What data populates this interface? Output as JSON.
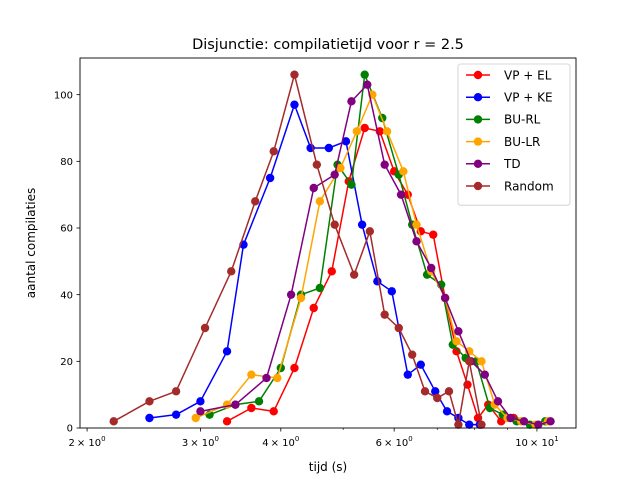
{
  "chart_data": {
    "type": "line",
    "title": "Disjunctie: compilatietijd voor r = 2.5",
    "xlabel": "tijd (s)",
    "ylabel": "aantal compilaties",
    "xscale": "log",
    "xlim": [
      1.95,
      11.5
    ],
    "ylim": [
      0,
      111
    ],
    "x_major_ticks": [
      {
        "value": 2,
        "base": "2",
        "exp": "0"
      },
      {
        "value": 3,
        "base": "3",
        "exp": "0"
      },
      {
        "value": 4,
        "base": "4",
        "exp": "0"
      },
      {
        "value": 6,
        "base": "6",
        "exp": "0"
      },
      {
        "value": 10,
        "base": "10",
        "exp": "1"
      }
    ],
    "x_minor_ticks": [
      5,
      7,
      8,
      9
    ],
    "x_tick_suffix": "× 10",
    "y_ticks": [
      0,
      20,
      40,
      60,
      80,
      100
    ],
    "y_tick_labels": [
      "0",
      "20",
      "40",
      "60",
      "80",
      "100"
    ],
    "grid": false,
    "legend": "top-right",
    "series": [
      {
        "name": "VP + EL",
        "color": "#ff0000",
        "x": [
          3.3,
          3.6,
          3.9,
          4.2,
          4.5,
          4.8,
          5.1,
          5.4,
          5.7,
          6.0,
          6.3,
          6.6,
          6.9,
          7.2,
          7.5,
          7.8,
          8.1,
          8.4,
          8.8,
          9.2
        ],
        "y": [
          2,
          6,
          5,
          18,
          36,
          47,
          74,
          90,
          89,
          77,
          70,
          59,
          58,
          39,
          23,
          13,
          3,
          7,
          2,
          3
        ]
      },
      {
        "name": "VP + KE",
        "color": "#0000ff",
        "x": [
          2.5,
          2.75,
          3.0,
          3.3,
          3.5,
          3.85,
          4.2,
          4.45,
          4.75,
          5.05,
          5.35,
          5.65,
          5.95,
          6.3,
          6.6,
          6.95,
          7.25,
          7.55,
          7.85,
          8.15
        ],
        "y": [
          3,
          4,
          8,
          23,
          55,
          75,
          97,
          84,
          84,
          86,
          61,
          44,
          41,
          16,
          19,
          11,
          5,
          3,
          1,
          1
        ]
      },
      {
        "name": "BU-RL",
        "color": "#008000",
        "x": [
          3.1,
          3.4,
          3.7,
          4.0,
          4.3,
          4.6,
          4.9,
          5.15,
          5.4,
          5.75,
          6.1,
          6.4,
          6.75,
          7.1,
          7.4,
          7.75,
          8.05,
          8.45,
          8.85,
          9.3,
          9.75,
          10.3
        ],
        "y": [
          4,
          7,
          8,
          18,
          40,
          42,
          79,
          73,
          106,
          93,
          76,
          61,
          46,
          43,
          25,
          21,
          20,
          6,
          4,
          2,
          1,
          2
        ]
      },
      {
        "name": "BU-LR",
        "color": "#ffa500",
        "x": [
          2.95,
          3.3,
          3.6,
          3.95,
          4.3,
          4.6,
          4.95,
          5.25,
          5.55,
          5.85,
          6.2,
          6.5,
          6.85,
          7.2,
          7.5,
          7.85,
          8.2,
          8.6,
          9.0,
          9.45,
          9.95,
          10.4
        ],
        "y": [
          3,
          7,
          16,
          15,
          39,
          68,
          78,
          89,
          100,
          89,
          77,
          61,
          47,
          39,
          26,
          23,
          20,
          7,
          3,
          2,
          1,
          2
        ]
      },
      {
        "name": "TD",
        "color": "#800080",
        "x": [
          3.0,
          3.4,
          3.8,
          4.15,
          4.5,
          4.85,
          5.15,
          5.45,
          5.8,
          6.15,
          6.5,
          6.85,
          7.2,
          7.55,
          7.9,
          8.3,
          8.7,
          9.1,
          9.55,
          10.05,
          10.5
        ],
        "y": [
          5,
          7,
          15,
          40,
          72,
          76,
          98,
          103,
          79,
          70,
          56,
          48,
          39,
          29,
          20,
          16,
          8,
          3,
          2,
          1,
          2
        ]
      },
      {
        "name": "Random",
        "color": "#a52a2a",
        "x": [
          2.2,
          2.5,
          2.75,
          3.05,
          3.35,
          3.65,
          3.9,
          4.2,
          4.55,
          4.85,
          5.2,
          5.5,
          5.8,
          6.1,
          6.4,
          6.7,
          7.0,
          7.3,
          7.55,
          7.85,
          8.2
        ],
        "y": [
          2,
          8,
          11,
          30,
          47,
          68,
          83,
          106,
          79,
          61,
          46,
          59,
          34,
          30,
          22,
          11,
          9,
          11,
          1,
          20,
          1
        ]
      }
    ]
  }
}
